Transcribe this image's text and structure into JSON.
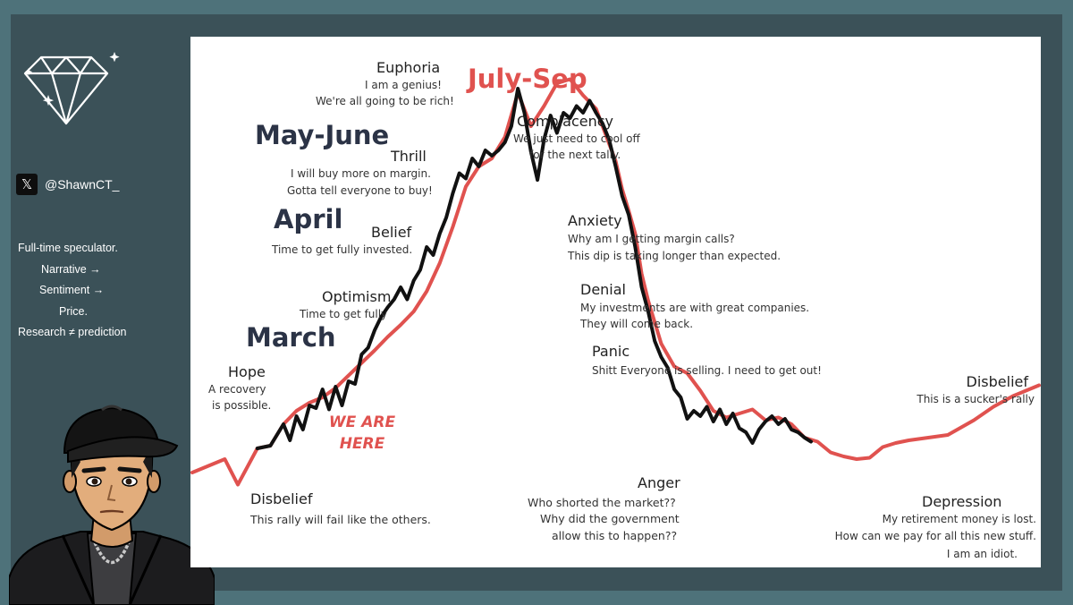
{
  "sidebar": {
    "handle": "@ShawnCT_",
    "x_icon": "x-logo-icon",
    "bio_lines": [
      "Full-time speculator.",
      "Narrative →",
      "Sentiment →",
      "Price.",
      "Research ≠ prediction"
    ]
  },
  "colors": {
    "background": "#4e727a",
    "panel": "#3b5158",
    "curve_red": "#e0524f",
    "curve_black": "#111111",
    "month_text": "#2b3346",
    "july_text": "#e0524f"
  },
  "chart_data": {
    "type": "line",
    "title": "",
    "xlabel": "",
    "ylabel": "",
    "series": [
      {
        "values": [
          [
            0,
            62
          ],
          [
            5,
            72
          ],
          [
            7,
            53
          ],
          [
            10,
            80
          ],
          [
            12,
            82
          ],
          [
            14,
            98
          ],
          [
            16,
            108
          ],
          [
            18,
            114
          ],
          [
            20,
            118
          ],
          [
            22,
            125
          ],
          [
            25,
            139
          ],
          [
            28,
            153
          ],
          [
            30,
            163
          ],
          [
            32,
            172
          ],
          [
            34,
            182
          ],
          [
            36,
            197
          ],
          [
            38,
            218
          ],
          [
            40,
            245
          ],
          [
            42,
            275
          ],
          [
            44,
            290
          ],
          [
            46,
            296
          ],
          [
            48,
            312
          ],
          [
            50,
            345
          ],
          [
            52,
            320
          ],
          [
            54,
            335
          ],
          [
            56,
            352
          ],
          [
            58,
            355
          ],
          [
            60,
            343
          ],
          [
            62,
            333
          ],
          [
            63,
            320
          ],
          [
            65,
            294
          ],
          [
            66,
            273
          ],
          [
            67,
            257
          ],
          [
            68,
            240
          ],
          [
            69,
            210
          ],
          [
            70,
            190
          ],
          [
            72,
            158
          ],
          [
            74,
            141
          ],
          [
            76,
            136
          ],
          [
            78,
            123
          ],
          [
            80,
            108
          ],
          [
            82,
            103
          ],
          [
            84,
            106
          ],
          [
            86,
            109
          ],
          [
            88,
            101
          ],
          [
            90,
            103
          ],
          [
            92,
            98
          ],
          [
            94,
            88
          ],
          [
            96,
            85
          ],
          [
            98,
            77
          ],
          [
            100,
            74
          ],
          [
            102,
            72
          ],
          [
            104,
            73
          ],
          [
            106,
            81
          ],
          [
            108,
            84
          ],
          [
            110,
            86
          ],
          [
            113,
            88
          ],
          [
            116,
            90
          ],
          [
            120,
            101
          ],
          [
            123,
            111
          ],
          [
            126,
            119
          ],
          [
            130,
            127
          ]
        ]
      },
      {
        "values": [
          [
            10,
            80
          ],
          [
            12,
            82
          ],
          [
            14,
            98
          ],
          [
            15,
            86
          ],
          [
            16,
            104
          ],
          [
            17,
            94
          ],
          [
            18,
            112
          ],
          [
            19,
            110
          ],
          [
            20,
            124
          ],
          [
            21,
            109
          ],
          [
            22,
            126
          ],
          [
            23,
            112
          ],
          [
            24,
            130
          ],
          [
            25,
            128
          ],
          [
            26,
            150
          ],
          [
            27,
            155
          ],
          [
            28,
            168
          ],
          [
            29,
            178
          ],
          [
            30,
            185
          ],
          [
            31,
            191
          ],
          [
            32,
            200
          ],
          [
            33,
            191
          ],
          [
            34,
            205
          ],
          [
            35,
            213
          ],
          [
            36,
            230
          ],
          [
            37,
            224
          ],
          [
            38,
            240
          ],
          [
            39,
            252
          ],
          [
            40,
            270
          ],
          [
            41,
            285
          ],
          [
            42,
            281
          ],
          [
            43,
            296
          ],
          [
            44,
            290
          ],
          [
            45,
            302
          ],
          [
            46,
            298
          ],
          [
            47,
            302
          ],
          [
            48,
            308
          ],
          [
            49,
            320
          ],
          [
            50,
            348
          ],
          [
            51,
            330
          ],
          [
            52,
            301
          ],
          [
            53,
            280
          ],
          [
            54,
            310
          ],
          [
            55,
            328
          ],
          [
            56,
            315
          ],
          [
            57,
            330
          ],
          [
            58,
            326
          ],
          [
            59,
            335
          ],
          [
            60,
            330
          ],
          [
            61,
            339
          ],
          [
            62,
            330
          ],
          [
            63,
            322
          ],
          [
            64,
            310
          ],
          [
            65,
            290
          ],
          [
            66,
            268
          ],
          [
            67,
            254
          ],
          [
            68,
            230
          ],
          [
            69,
            200
          ],
          [
            70,
            182
          ],
          [
            71,
            160
          ],
          [
            72,
            148
          ],
          [
            73,
            140
          ],
          [
            74,
            124
          ],
          [
            75,
            118
          ],
          [
            76,
            102
          ],
          [
            77,
            108
          ],
          [
            78,
            104
          ],
          [
            79,
            111
          ],
          [
            80,
            100
          ],
          [
            81,
            109
          ],
          [
            82,
            98
          ],
          [
            83,
            106
          ],
          [
            84,
            95
          ],
          [
            85,
            92
          ],
          [
            86,
            84
          ],
          [
            87,
            94
          ],
          [
            88,
            100
          ],
          [
            89,
            104
          ],
          [
            90,
            98
          ],
          [
            91,
            102
          ],
          [
            92,
            94
          ],
          [
            93,
            92
          ],
          [
            94,
            88
          ],
          [
            95,
            85
          ]
        ]
      }
    ],
    "phase_labels": [
      {
        "name": "Disbelief",
        "desc": [
          "This rally will fail like the others."
        ]
      },
      {
        "name": "Hope",
        "desc": [
          "A recovery",
          "is possible."
        ]
      },
      {
        "name": "Optimism",
        "desc": [
          "Time to get fully"
        ]
      },
      {
        "name": "Belief",
        "desc": [
          "Time to get fully invested."
        ]
      },
      {
        "name": "Thrill",
        "desc": [
          "I will buy more on margin.",
          "Gotta tell everyone to buy!"
        ]
      },
      {
        "name": "Euphoria",
        "desc": [
          "I am a genius!",
          "We're all going to be rich!"
        ]
      },
      {
        "name": "Complacency",
        "desc": [
          "We just need to cool off",
          "for the next tally."
        ]
      },
      {
        "name": "Anxiety",
        "desc": [
          "Why am I getting margin calls?",
          "This dip is taking longer than expected."
        ]
      },
      {
        "name": "Denial",
        "desc": [
          "My investments are with great companies.",
          "They will come back."
        ]
      },
      {
        "name": "Panic",
        "desc": [
          "Shitt Everyone is selling. I need to get out!"
        ]
      },
      {
        "name": "Anger",
        "desc": [
          "Who shorted the market??",
          "Why did the government",
          "allow this to happen??"
        ]
      },
      {
        "name": "Depression",
        "desc": [
          "My retirement money is lost.",
          "How can we pay for all this new stuff.",
          "I am an idiot."
        ]
      },
      {
        "name": "Disbelief",
        "desc": [
          "This is a sucker's rally"
        ]
      }
    ],
    "month_labels": [
      "March",
      "April",
      "May-June",
      "July-Sep"
    ],
    "marker": [
      "WE ARE",
      "HERE"
    ]
  }
}
